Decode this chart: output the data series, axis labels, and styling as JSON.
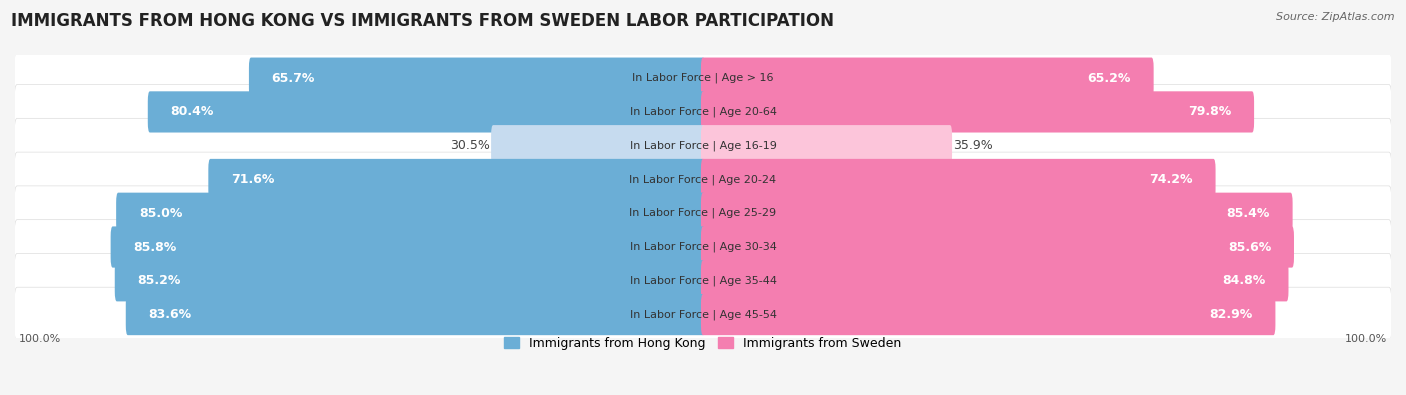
{
  "title": "IMMIGRANTS FROM HONG KONG VS IMMIGRANTS FROM SWEDEN LABOR PARTICIPATION",
  "source": "Source: ZipAtlas.com",
  "categories": [
    "In Labor Force | Age > 16",
    "In Labor Force | Age 20-64",
    "In Labor Force | Age 16-19",
    "In Labor Force | Age 20-24",
    "In Labor Force | Age 25-29",
    "In Labor Force | Age 30-34",
    "In Labor Force | Age 35-44",
    "In Labor Force | Age 45-54"
  ],
  "hong_kong_values": [
    65.7,
    80.4,
    30.5,
    71.6,
    85.0,
    85.8,
    85.2,
    83.6
  ],
  "sweden_values": [
    65.2,
    79.8,
    35.9,
    74.2,
    85.4,
    85.6,
    84.8,
    82.9
  ],
  "hong_kong_color": "#6baed6",
  "hong_kong_color_light": "#c6dbef",
  "sweden_color": "#f47eb0",
  "sweden_color_light": "#fcc5da",
  "row_bg_color": "#efefef",
  "background_color": "#f5f5f5",
  "title_fontsize": 12,
  "bar_label_fontsize": 9,
  "cat_label_fontsize": 8,
  "legend_fontsize": 9,
  "source_fontsize": 8,
  "axis_label_fontsize": 8,
  "max_value": 100.0,
  "legend_hk": "Immigrants from Hong Kong",
  "legend_sw": "Immigrants from Sweden",
  "light_threshold": 50
}
